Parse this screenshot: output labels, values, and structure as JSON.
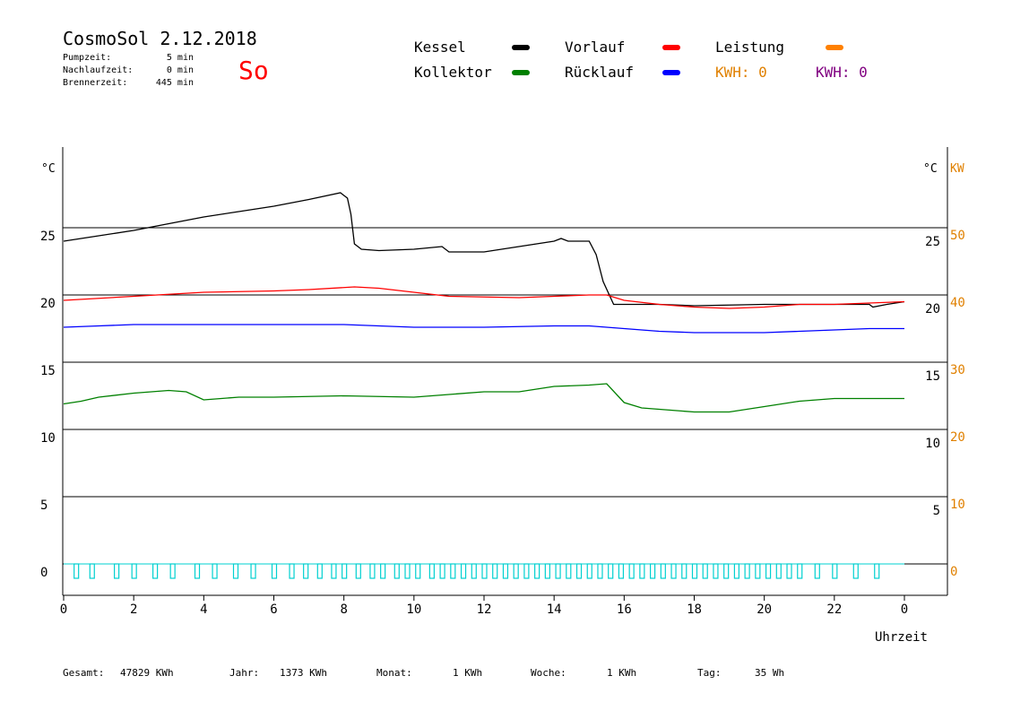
{
  "header": {
    "title": "CosmoSol 2.12.2018",
    "day": "So",
    "stats": [
      {
        "label": "Pumpzeit:",
        "value": "5 min"
      },
      {
        "label": "Nachlaufzeit:",
        "value": "0 min"
      },
      {
        "label": "Brennerzeit:",
        "value": "445 min"
      }
    ]
  },
  "legend": {
    "items": [
      {
        "label": "Kessel",
        "color": "#000000"
      },
      {
        "label": "Vorlauf",
        "color": "#ff0000"
      },
      {
        "label": "Leistung",
        "color": "#ff8000"
      },
      {
        "label": "Kollektor",
        "color": "#008000"
      },
      {
        "label": "Rücklauf",
        "color": "#0000ff"
      }
    ],
    "kwh": [
      {
        "text": "KWH: 0",
        "color": "#e08000"
      },
      {
        "text": "KWH: 0",
        "color": "#800080"
      }
    ]
  },
  "footer": [
    {
      "label": "Gesamt:",
      "value": "47829 KWh"
    },
    {
      "label": "Jahr:",
      "value": "1373 KWh"
    },
    {
      "label": "Monat:",
      "value": "1 KWh"
    },
    {
      "label": "Woche:",
      "value": "1 KWh"
    },
    {
      "label": "Tag:",
      "value": "35 Wh"
    }
  ],
  "chart_data": {
    "type": "line",
    "xlabel": "Uhrzeit",
    "x_ticks": [
      "0",
      "2",
      "4",
      "6",
      "8",
      "10",
      "12",
      "14",
      "16",
      "18",
      "20",
      "22",
      "0"
    ],
    "xlim": [
      0,
      24
    ],
    "ylabel_left": "°C",
    "ylabel_right": "°C",
    "ylabel_right2": "KW",
    "ylim": [
      -2,
      31
    ],
    "y_ticks_left": [
      0,
      5,
      10,
      15,
      20,
      25
    ],
    "y_ticks_right": [
      5,
      10,
      15,
      20,
      25
    ],
    "y_ticks_kw": [
      0,
      10,
      20,
      30,
      40,
      50
    ],
    "gridlines": [
      0,
      5,
      10,
      15,
      20,
      25
    ],
    "colors": {
      "kessel": "#000000",
      "vorlauf": "#ff0000",
      "ruecklauf": "#0000ff",
      "kollektor": "#008000",
      "pumpe": "#00d0d0"
    },
    "series": [
      {
        "name": "Kessel",
        "color": "#000000",
        "points": [
          [
            0,
            24
          ],
          [
            1,
            24.4
          ],
          [
            2,
            24.8
          ],
          [
            3,
            25.3
          ],
          [
            4,
            25.8
          ],
          [
            5,
            26.2
          ],
          [
            6,
            26.6
          ],
          [
            7,
            27.1
          ],
          [
            7.9,
            27.6
          ],
          [
            8.1,
            27.2
          ],
          [
            8.2,
            26
          ],
          [
            8.3,
            23.8
          ],
          [
            8.5,
            23.4
          ],
          [
            9,
            23.3
          ],
          [
            10,
            23.4
          ],
          [
            10.8,
            23.6
          ],
          [
            11,
            23.2
          ],
          [
            12,
            23.2
          ],
          [
            13,
            23.6
          ],
          [
            14,
            24.0
          ],
          [
            14.2,
            24.2
          ],
          [
            14.4,
            24.0
          ],
          [
            15,
            24.0
          ],
          [
            15.2,
            23.0
          ],
          [
            15.4,
            21.0
          ],
          [
            15.7,
            19.3
          ],
          [
            17,
            19.3
          ],
          [
            18,
            19.2
          ],
          [
            20,
            19.3
          ],
          [
            22,
            19.3
          ],
          [
            23,
            19.3
          ],
          [
            23.1,
            19.1
          ],
          [
            23.5,
            19.3
          ],
          [
            24,
            19.5
          ]
        ]
      },
      {
        "name": "Vorlauf",
        "color": "#ff0000",
        "points": [
          [
            0,
            19.6
          ],
          [
            2,
            19.9
          ],
          [
            4,
            20.2
          ],
          [
            6,
            20.3
          ],
          [
            7,
            20.4
          ],
          [
            8.3,
            20.6
          ],
          [
            9,
            20.5
          ],
          [
            10,
            20.2
          ],
          [
            11,
            19.9
          ],
          [
            13,
            19.8
          ],
          [
            14,
            19.9
          ],
          [
            15,
            20.0
          ],
          [
            15.5,
            20.0
          ],
          [
            16,
            19.6
          ],
          [
            17,
            19.3
          ],
          [
            18,
            19.1
          ],
          [
            19,
            19.0
          ],
          [
            20,
            19.1
          ],
          [
            21,
            19.3
          ],
          [
            22,
            19.3
          ],
          [
            23,
            19.4
          ],
          [
            24,
            19.5
          ]
        ]
      },
      {
        "name": "Rücklauf",
        "color": "#0000ff",
        "points": [
          [
            0,
            17.6
          ],
          [
            1,
            17.7
          ],
          [
            2,
            17.8
          ],
          [
            4,
            17.8
          ],
          [
            6,
            17.8
          ],
          [
            8,
            17.8
          ],
          [
            9,
            17.7
          ],
          [
            10,
            17.6
          ],
          [
            12,
            17.6
          ],
          [
            14,
            17.7
          ],
          [
            15,
            17.7
          ],
          [
            16,
            17.5
          ],
          [
            17,
            17.3
          ],
          [
            18,
            17.2
          ],
          [
            20,
            17.2
          ],
          [
            22,
            17.4
          ],
          [
            23,
            17.5
          ],
          [
            24,
            17.5
          ]
        ]
      },
      {
        "name": "Kollektor",
        "color": "#008000",
        "points": [
          [
            0,
            11.9
          ],
          [
            0.5,
            12.1
          ],
          [
            1,
            12.4
          ],
          [
            2,
            12.7
          ],
          [
            3,
            12.9
          ],
          [
            3.5,
            12.8
          ],
          [
            4,
            12.2
          ],
          [
            5,
            12.4
          ],
          [
            6,
            12.4
          ],
          [
            8,
            12.5
          ],
          [
            10,
            12.4
          ],
          [
            11,
            12.6
          ],
          [
            12,
            12.8
          ],
          [
            13,
            12.8
          ],
          [
            14,
            13.2
          ],
          [
            15,
            13.3
          ],
          [
            15.5,
            13.4
          ],
          [
            16,
            12.0
          ],
          [
            16.5,
            11.6
          ],
          [
            17.5,
            11.4
          ],
          [
            18,
            11.3
          ],
          [
            19,
            11.3
          ],
          [
            20,
            11.7
          ],
          [
            21,
            12.1
          ],
          [
            22,
            12.3
          ],
          [
            23,
            12.3
          ],
          [
            24,
            12.3
          ]
        ]
      }
    ],
    "pump_pulses_hours": [
      0.35,
      0.8,
      1.5,
      2.0,
      2.6,
      3.1,
      3.8,
      4.3,
      4.9,
      5.4,
      6.0,
      6.5,
      6.9,
      7.3,
      7.7,
      8.0,
      8.4,
      8.8,
      9.1,
      9.5,
      9.8,
      10.1,
      10.5,
      10.8,
      11.1,
      11.4,
      11.7,
      12.0,
      12.3,
      12.6,
      12.9,
      13.2,
      13.5,
      13.8,
      14.1,
      14.4,
      14.7,
      15.0,
      15.3,
      15.6,
      15.9,
      16.2,
      16.5,
      16.8,
      17.1,
      17.4,
      17.7,
      18.0,
      18.3,
      18.6,
      18.9,
      19.2,
      19.5,
      19.8,
      20.1,
      20.4,
      20.7,
      21.0,
      21.5,
      22.0,
      22.6,
      23.2
    ],
    "pump_level": 0
  }
}
